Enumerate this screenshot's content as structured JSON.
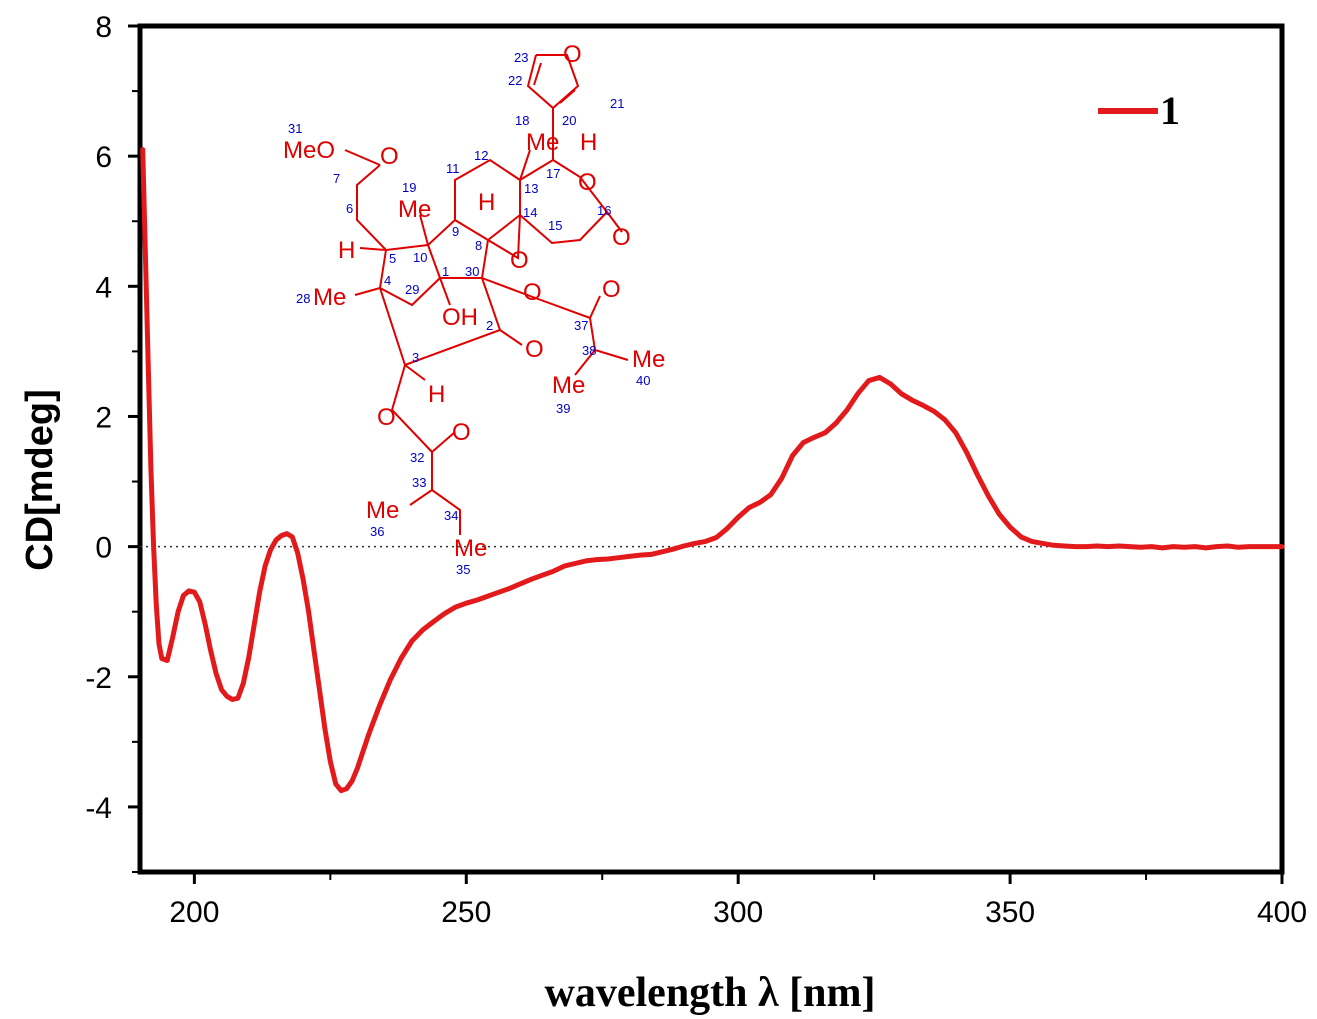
{
  "chart_data": {
    "type": "line",
    "xlabel": "wavelength λ [nm]",
    "ylabel": "CD[mdeg]",
    "xlim": [
      190,
      400
    ],
    "ylim": [
      -5,
      8
    ],
    "x_ticks": [
      200,
      250,
      300,
      350,
      400
    ],
    "y_ticks": [
      -4,
      -2,
      0,
      2,
      4,
      6,
      8
    ],
    "x_tick_labels": [
      "200",
      "250",
      "300",
      "350",
      "400"
    ],
    "y_tick_labels": [
      "-4",
      "-2",
      "0",
      "2",
      "4",
      "6",
      "8"
    ],
    "zero_line": true,
    "grid": false,
    "legend_position": "top-right",
    "series": [
      {
        "name": "1",
        "color": "#e31a1c",
        "x": [
          190.5,
          191,
          191.5,
          192,
          192.5,
          193,
          193.5,
          194,
          195,
          196,
          197,
          198,
          199,
          200,
          201,
          202,
          203,
          204,
          205,
          206,
          207,
          208,
          209,
          210,
          211,
          212,
          213,
          214,
          215,
          216,
          217,
          218,
          219,
          220,
          221,
          222,
          223,
          224,
          225,
          226,
          227,
          228,
          229,
          230,
          232,
          234,
          236,
          238,
          240,
          242,
          244,
          246,
          248,
          250,
          252,
          254,
          256,
          258,
          260,
          262,
          264,
          266,
          268,
          270,
          272,
          274,
          276,
          278,
          280,
          282,
          284,
          286,
          288,
          290,
          292,
          294,
          296,
          298,
          300,
          302,
          304,
          306,
          308,
          310,
          312,
          314,
          316,
          318,
          320,
          322,
          324,
          326,
          328,
          330,
          332,
          334,
          336,
          338,
          340,
          342,
          344,
          346,
          348,
          350,
          352,
          354,
          356,
          358,
          360,
          362,
          364,
          366,
          368,
          370,
          372,
          374,
          376,
          378,
          380,
          382,
          384,
          386,
          388,
          390,
          392,
          394,
          396,
          398,
          400
        ],
        "y": [
          6.1,
          4.5,
          2.8,
          1.2,
          0.0,
          -0.9,
          -1.5,
          -1.72,
          -1.75,
          -1.4,
          -1.0,
          -0.75,
          -0.68,
          -0.7,
          -0.85,
          -1.2,
          -1.6,
          -1.95,
          -2.2,
          -2.3,
          -2.35,
          -2.33,
          -2.1,
          -1.7,
          -1.2,
          -0.7,
          -0.3,
          -0.05,
          0.1,
          0.17,
          0.2,
          0.15,
          -0.1,
          -0.5,
          -1.0,
          -1.6,
          -2.2,
          -2.8,
          -3.3,
          -3.65,
          -3.75,
          -3.72,
          -3.6,
          -3.4,
          -2.9,
          -2.45,
          -2.05,
          -1.72,
          -1.45,
          -1.28,
          -1.15,
          -1.03,
          -0.93,
          -0.87,
          -0.82,
          -0.76,
          -0.7,
          -0.64,
          -0.57,
          -0.5,
          -0.44,
          -0.38,
          -0.3,
          -0.26,
          -0.22,
          -0.2,
          -0.19,
          -0.17,
          -0.15,
          -0.13,
          -0.12,
          -0.08,
          -0.04,
          0.01,
          0.05,
          0.08,
          0.14,
          0.28,
          0.45,
          0.6,
          0.68,
          0.8,
          1.05,
          1.4,
          1.6,
          1.68,
          1.75,
          1.9,
          2.1,
          2.35,
          2.55,
          2.6,
          2.5,
          2.35,
          2.25,
          2.17,
          2.08,
          1.95,
          1.75,
          1.45,
          1.1,
          0.78,
          0.5,
          0.3,
          0.15,
          0.08,
          0.05,
          0.02,
          0.01,
          0.0,
          0.0,
          0.01,
          0.0,
          0.01,
          0.0,
          -0.01,
          0.0,
          -0.02,
          0.0,
          -0.01,
          0.0,
          -0.02,
          0.0,
          0.01,
          -0.01,
          0.0,
          0.0,
          0.0,
          0.0
        ]
      }
    ],
    "structure_atom_labels": [
      "O",
      "MeO",
      "O",
      "Me",
      "H",
      "Me",
      "H",
      "O",
      "O",
      "H",
      "O",
      "Me",
      "OH",
      "O",
      "O",
      "O",
      "Me",
      "Me",
      "H",
      "O",
      "O",
      "Me",
      "Me"
    ],
    "structure_atom_numbers": [
      "23",
      "22",
      "21",
      "20",
      "18",
      "31",
      "17",
      "13",
      "12",
      "11",
      "7",
      "19",
      "6",
      "9",
      "14",
      "16",
      "15",
      "10",
      "8",
      "5",
      "1",
      "30",
      "4",
      "29",
      "28",
      "2",
      "37",
      "38",
      "40",
      "39",
      "3",
      "32",
      "33",
      "34",
      "36",
      "35"
    ]
  }
}
